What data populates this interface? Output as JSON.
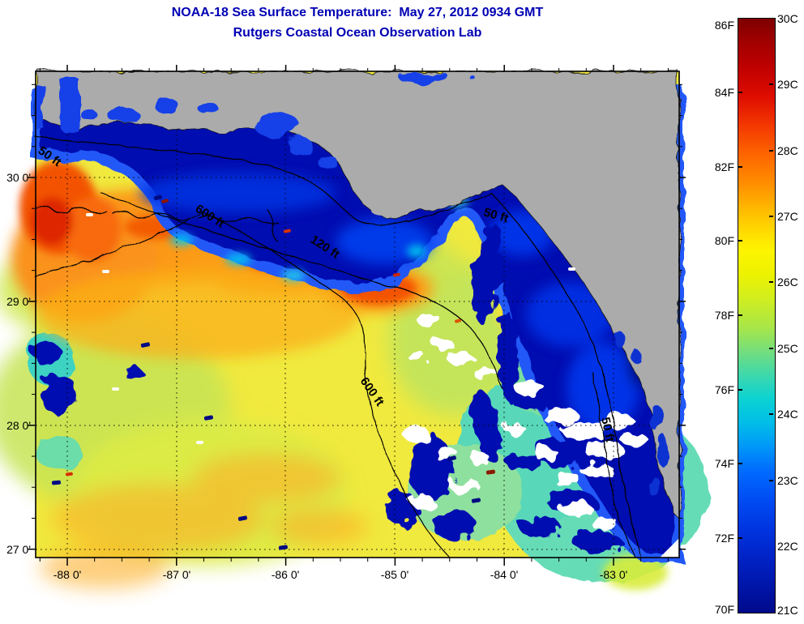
{
  "title": {
    "line1": "NOAA-18 Sea Surface Temperature:  May 27, 2012 0934 GMT",
    "line2": "Rutgers Coastal Ocean Observation Lab",
    "color": "#0000B4"
  },
  "axes": {
    "x_ticks": [
      "-88 0'",
      "-87 0'",
      "-86 0'",
      "-85 0'",
      "-84 0'",
      "-83 0'"
    ],
    "y_ticks": [
      "30 0'",
      "29 0'",
      "28 0'",
      "27 0'"
    ]
  },
  "colorbar": {
    "f_labels": [
      "86F",
      "84F",
      "82F",
      "80F",
      "78F",
      "76F",
      "74F",
      "72F",
      "70F"
    ],
    "c_labels": [
      "30C",
      "29C",
      "28C",
      "27C",
      "26C",
      "25C",
      "24C",
      "23C",
      "22C",
      "21C"
    ],
    "palette": "jet"
  },
  "map": {
    "contour_labels": [
      "50 ft",
      "600 ft",
      "120 ft",
      "50 ft",
      "600 ft",
      "50 ft"
    ],
    "land_color": "#ABABAB",
    "cold_water_color": "#000CB0",
    "warm_water_color": "#F89020"
  },
  "chart_data": {
    "type": "heatmap",
    "title": "NOAA-18 Sea Surface Temperature:  May 27, 2012 0934 GMT",
    "subtitle": "Rutgers Coastal Ocean Observation Lab",
    "x_axis": {
      "tick_labels": [
        "-88 0'",
        "-87 0'",
        "-86 0'",
        "-85 0'",
        "-84 0'",
        "-83 0'"
      ],
      "range_deg_lon": [
        -88.3,
        -82.4
      ]
    },
    "y_axis": {
      "tick_labels": [
        "30 0'",
        "29 0'",
        "28 0'",
        "27 0'"
      ],
      "range_deg_lat": [
        26.9,
        30.86
      ]
    },
    "colorbar": {
      "position": "right",
      "fahrenheit_ticks": [
        "86F",
        "84F",
        "82F",
        "80F",
        "78F",
        "76F",
        "74F",
        "72F",
        "70F"
      ],
      "celsius_ticks": [
        "30C",
        "29C",
        "28C",
        "27C",
        "26C",
        "25C",
        "24C",
        "23C",
        "22C",
        "21C"
      ],
      "range_f": [
        70,
        86
      ],
      "range_c": [
        21,
        30
      ],
      "palette": "jet"
    },
    "depth_contours_ft": [
      50,
      120,
      600
    ],
    "grid": "dotted at whole degrees",
    "features": [
      "gray land mass along northern Gulf coast and Florida peninsula",
      "cold (blue) coastal band along panhandle and West Florida shelf",
      "warm (orange/red) Mississippi plume near -88.5 lon, 29.8 lat",
      "broad warm yellow-orange offshore waters 78-80F",
      "cloud-masked white and navy mottled region in southeast quadrant"
    ]
  }
}
